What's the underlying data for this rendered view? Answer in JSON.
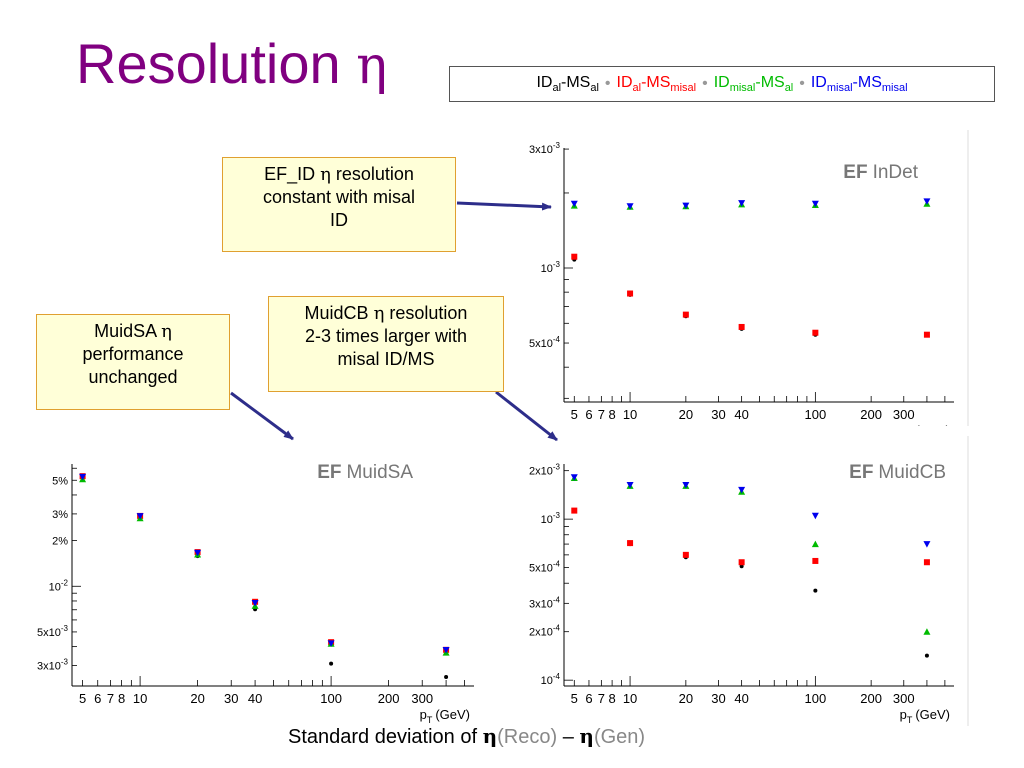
{
  "slide": {
    "title_text": "Resolution",
    "title_symbol": "η",
    "legend": [
      {
        "a": "ID",
        "a_sub": "al",
        "b": "-MS",
        "b_sub": "al",
        "color": "#000000"
      },
      {
        "a": "ID",
        "a_sub": "al",
        "b": "-MS",
        "b_sub": "misal",
        "color": "#ff0000"
      },
      {
        "a": "ID",
        "a_sub": "misal",
        "b": "-MS",
        "b_sub": "al",
        "color": "#00bb00"
      },
      {
        "a": "ID",
        "a_sub": "misal",
        "b": "-MS",
        "b_sub": "misal",
        "color": "#0000ee"
      }
    ],
    "legend_separator": "•",
    "notes": {
      "ef_id": {
        "line1_pre": "EF_ID ",
        "symbol": "η",
        "line1_post": " resolution",
        "line2": "constant with misal",
        "line3": "ID"
      },
      "muidcb": {
        "line1_pre": "MuidCB ",
        "symbol": "η",
        "line1_post": " resolution",
        "line2": "2-3 times larger with",
        "line3": "misal ID/MS"
      },
      "muidsa": {
        "line1_pre": "MuidSA ",
        "symbol": "η",
        "line2": "performance",
        "line3": "unchanged"
      }
    },
    "footer": {
      "pre": "Standard deviation of ",
      "sym1": "η",
      "t1": "(Reco)",
      "dash": " – ",
      "sym2": "η",
      "t2": "(Gen)"
    }
  },
  "chart_data": [
    {
      "type": "scatter",
      "title": "EF InDet",
      "title_bold": "EF",
      "title_rest": "InDet",
      "xlabel": "p_T (GeV)",
      "xlabel_main": "p",
      "xlabel_sub": "T",
      "xlabel_unit": "(GeV)",
      "x_scale": "log",
      "y_scale": "log",
      "xlim": [
        4.4,
        560
      ],
      "ylim": [
        0.00029,
        0.00303
      ],
      "x_ticks": [
        5,
        6,
        7,
        8,
        10,
        20,
        30,
        40,
        100,
        200,
        300
      ],
      "x_tick_labels": [
        "5",
        "6",
        "7",
        "8",
        "10",
        "20",
        "30",
        "40",
        "100",
        "200",
        "300"
      ],
      "y_ticks": [
        0.003,
        0.001,
        0.0005
      ],
      "y_tick_labels": [
        "3x10-3",
        "10-3",
        "5x10-4"
      ],
      "x": [
        5,
        10,
        20,
        40,
        100,
        400
      ],
      "series": [
        {
          "color": "#000000",
          "marker": "circle",
          "values": [
            0.00108,
            0.00078,
            0.00064,
            0.00057,
            0.00054,
            0.00054
          ]
        },
        {
          "color": "#ff0000",
          "marker": "square",
          "values": [
            0.00111,
            0.00079,
            0.00065,
            0.00058,
            0.00055,
            0.00054
          ]
        },
        {
          "color": "#00bb00",
          "marker": "triangle-up",
          "values": [
            0.00178,
            0.00176,
            0.00177,
            0.0018,
            0.00179,
            0.00181
          ]
        },
        {
          "color": "#0000ee",
          "marker": "triangle-down",
          "values": [
            0.00181,
            0.00177,
            0.00178,
            0.00182,
            0.00181,
            0.00185
          ]
        }
      ]
    },
    {
      "type": "scatter",
      "title": "EF MuidSA",
      "title_bold": "EF",
      "title_rest": "MuidSA",
      "xlabel": "p_T (GeV)",
      "xlabel_main": "p",
      "xlabel_sub": "T",
      "xlabel_unit": "(GeV)",
      "x_scale": "log",
      "y_scale": "log",
      "xlim": [
        4.4,
        560
      ],
      "ylim": [
        0.0022,
        0.064
      ],
      "x_ticks": [
        5,
        6,
        7,
        8,
        10,
        20,
        30,
        40,
        100,
        200,
        300
      ],
      "x_tick_labels": [
        "5",
        "6",
        "7",
        "8",
        "10",
        "20",
        "30",
        "40",
        "100",
        "200",
        "300"
      ],
      "y_ticks": [
        0.05,
        0.03,
        0.02,
        0.01,
        0.005,
        0.003
      ],
      "y_tick_labels": [
        "5%",
        "3%",
        "2%",
        "10-2",
        "5x10-3",
        "3x10-3"
      ],
      "x": [
        5,
        10,
        20,
        40,
        100,
        400
      ],
      "series": [
        {
          "color": "#000000",
          "marker": "circle",
          "values": [
            0.0523,
            0.0282,
            0.0158,
            0.00705,
            0.00309,
            0.00252
          ]
        },
        {
          "color": "#ff0000",
          "marker": "square",
          "values": [
            0.0532,
            0.0291,
            0.0168,
            0.0079,
            0.00428,
            0.00381
          ]
        },
        {
          "color": "#00bb00",
          "marker": "triangle-up",
          "values": [
            0.0508,
            0.0281,
            0.0162,
            0.00742,
            0.00418,
            0.00365
          ]
        },
        {
          "color": "#0000ee",
          "marker": "triangle-down",
          "values": [
            0.0526,
            0.029,
            0.0166,
            0.00775,
            0.0042,
            0.0038
          ]
        }
      ]
    },
    {
      "type": "scatter",
      "title": "EF MuidCB",
      "title_bold": "EF",
      "title_rest": "MuidCB",
      "xlabel": "p_T (GeV)",
      "xlabel_main": "p",
      "xlabel_sub": "T",
      "xlabel_unit": "(GeV)",
      "x_scale": "log",
      "y_scale": "log",
      "xlim": [
        4.4,
        560
      ],
      "ylim": [
        9.2e-05,
        0.0022
      ],
      "x_ticks": [
        5,
        6,
        7,
        8,
        10,
        20,
        30,
        40,
        100,
        200,
        300
      ],
      "x_tick_labels": [
        "5",
        "6",
        "7",
        "8",
        "10",
        "20",
        "30",
        "40",
        "100",
        "200",
        "300"
      ],
      "y_ticks": [
        0.002,
        0.001,
        0.0005,
        0.0003,
        0.0002,
        0.0001
      ],
      "y_tick_labels": [
        "2x10-3",
        "10-3",
        "5x10-4",
        "3x10-4",
        "2x10-4",
        "10-4"
      ],
      "x": [
        5,
        10,
        20,
        40,
        100,
        400
      ],
      "series": [
        {
          "color": "#000000",
          "marker": "circle",
          "values": [
            0.00112,
            0.0007,
            0.00058,
            0.00051,
            0.00036,
            0.000142
          ]
        },
        {
          "color": "#ff0000",
          "marker": "square",
          "values": [
            0.00113,
            0.00071,
            0.0006,
            0.00054,
            0.00055,
            0.00054
          ]
        },
        {
          "color": "#00bb00",
          "marker": "triangle-up",
          "values": [
            0.0018,
            0.00161,
            0.00161,
            0.00148,
            0.0007,
            0.0002
          ]
        },
        {
          "color": "#0000ee",
          "marker": "triangle-down",
          "values": [
            0.00182,
            0.00163,
            0.00163,
            0.00152,
            0.00105,
            0.0007
          ]
        }
      ]
    }
  ]
}
